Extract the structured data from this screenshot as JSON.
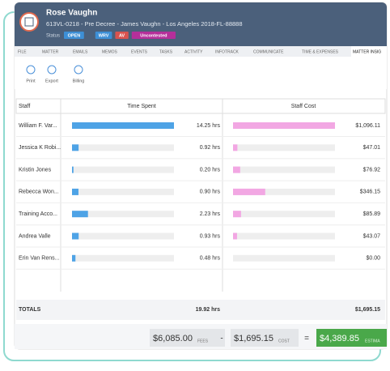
{
  "header": {
    "name": "Rose Vaughn",
    "subtitle": "613VL-0218 - Pre Decree - James Vaughn - Los Angeles 2018-FL-88888",
    "status_label": "Status",
    "badges": [
      "OPEN",
      "WRV",
      "AV",
      "Uncontested"
    ]
  },
  "tabs": [
    "FILE",
    "MATTER",
    "EMAILS",
    "MEMOS",
    "EVENTS",
    "TASKS",
    "ACTIVITY",
    "INFOTRACK",
    "COMMUNICATE",
    "TIME & EXPENSES",
    "MATTER INSIG"
  ],
  "toolbar": [
    "Print",
    "Export",
    "Billing"
  ],
  "table": {
    "columns": [
      "Staff",
      "Time Spent",
      "Staff Cost"
    ],
    "rows": [
      {
        "staff": "William F. Var...",
        "time": {
          "value": 14.25,
          "label": "14.25 hrs"
        },
        "cost": {
          "value": 1096.11,
          "label": "$1,096.11"
        }
      },
      {
        "staff": "Jessica K Robi...",
        "time": {
          "value": 0.92,
          "label": "0.92 hrs"
        },
        "cost": {
          "value": 47.01,
          "label": "$47.01"
        }
      },
      {
        "staff": "Kristin Jones",
        "time": {
          "value": 0.2,
          "label": "0.20 hrs"
        },
        "cost": {
          "value": 76.92,
          "label": "$76.92"
        }
      },
      {
        "staff": "Rebecca Won...",
        "time": {
          "value": 0.9,
          "label": "0.90 hrs"
        },
        "cost": {
          "value": 346.15,
          "label": "$346.15"
        }
      },
      {
        "staff": "Training Acco...",
        "time": {
          "value": 2.23,
          "label": "2.23 hrs"
        },
        "cost": {
          "value": 85.89,
          "label": "$85.89"
        }
      },
      {
        "staff": "Andrea Valle",
        "time": {
          "value": 0.93,
          "label": "0.93 hrs"
        },
        "cost": {
          "value": 43.07,
          "label": "$43.07"
        }
      },
      {
        "staff": "Erin Van Rens...",
        "time": {
          "value": 0.48,
          "label": "0.48 hrs"
        },
        "cost": {
          "value": 0,
          "label": "$0.00"
        }
      }
    ],
    "totals": {
      "label": "TOTALS",
      "time": "19.92 hrs",
      "cost": "$1,695.15"
    }
  },
  "summary": {
    "fees": "$6,085.00",
    "fees_label": "FEES",
    "minus": "-",
    "cost": "$1,695.15",
    "cost_label": "COST",
    "equals": "=",
    "estimate": "$4,389.85",
    "estimate_label": "ESTIMA"
  }
}
